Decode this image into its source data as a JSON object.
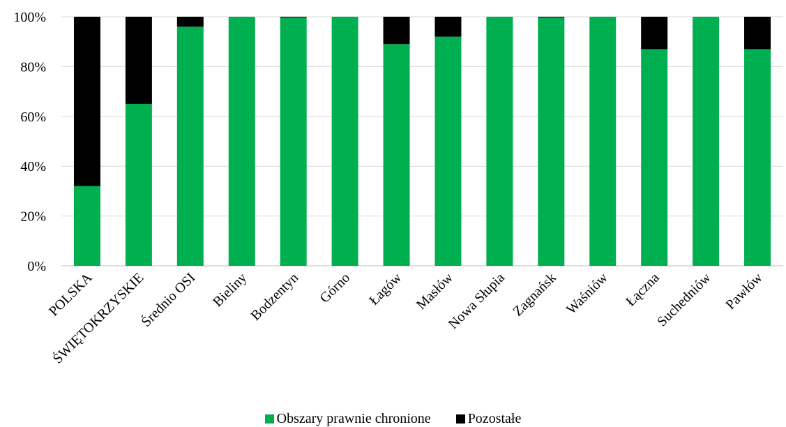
{
  "chart_data": {
    "type": "bar",
    "stacked": true,
    "percent": true,
    "categories": [
      "POLSKA",
      "ŚWIĘTOKRZYSKIE",
      "Średnio OSI",
      "Bieliny",
      "Bodzentyn",
      "Górno",
      "Łagów",
      "Masłów",
      "Nowa Słupia",
      "Zagnańsk",
      "Waśniów",
      "Łączna",
      "Suchedniów",
      "Pawłów"
    ],
    "series": [
      {
        "name": "Obszary prawnie chronione",
        "color": "#00b050",
        "values": [
          32,
          65,
          96,
          100,
          99.7,
          100,
          89,
          92,
          100,
          99.7,
          100,
          87,
          100,
          87
        ]
      },
      {
        "name": "Pozostałe",
        "color": "#000000",
        "values": [
          68,
          35,
          4,
          0,
          0.3,
          0,
          11,
          8,
          0,
          0.3,
          0,
          13,
          0,
          13
        ]
      }
    ],
    "y_ticks": [
      "0%",
      "20%",
      "40%",
      "60%",
      "80%",
      "100%"
    ],
    "ylim": [
      0,
      100
    ],
    "grid": true,
    "legend_position": "bottom"
  }
}
